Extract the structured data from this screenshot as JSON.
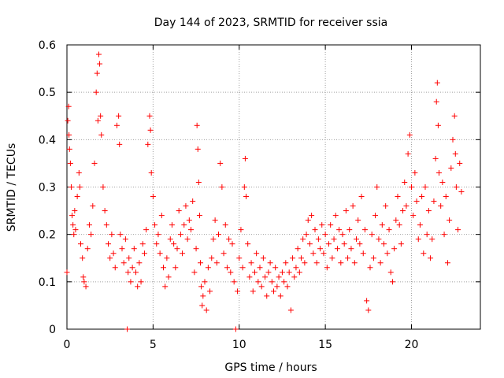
{
  "chart_data": {
    "type": "scatter",
    "title": "Day 144 of 2023, SRMTID for receiver ssia",
    "xlabel": "GPS time / hours",
    "ylabel": "SRMTID / TECUs",
    "xlim": [
      0,
      24
    ],
    "ylim": [
      0,
      0.6
    ],
    "x_ticks": [
      0,
      5,
      10,
      15,
      20
    ],
    "x_tick_labels": [
      "0",
      "5",
      "10",
      "15",
      "20"
    ],
    "y_ticks": [
      0,
      0.1,
      0.2,
      0.3,
      0.4,
      0.5,
      0.6
    ],
    "y_tick_labels": [
      "0",
      "0.1",
      "0.2",
      "0.3",
      "0.4",
      "0.5",
      "0.6"
    ],
    "grid": true,
    "marker": "+",
    "series": [
      {
        "name": "SRMTID",
        "color": "#ff0000",
        "points": [
          [
            0.0,
            0.12
          ],
          [
            0.05,
            0.44
          ],
          [
            0.1,
            0.47
          ],
          [
            0.12,
            0.41
          ],
          [
            0.15,
            0.38
          ],
          [
            0.2,
            0.35
          ],
          [
            0.25,
            0.3
          ],
          [
            0.3,
            0.24
          ],
          [
            0.35,
            0.22
          ],
          [
            0.4,
            0.2
          ],
          [
            0.45,
            0.25
          ],
          [
            0.5,
            0.21
          ],
          [
            0.6,
            0.28
          ],
          [
            0.7,
            0.33
          ],
          [
            0.75,
            0.3
          ],
          [
            0.8,
            0.18
          ],
          [
            0.9,
            0.15
          ],
          [
            0.95,
            0.11
          ],
          [
            1.0,
            0.1
          ],
          [
            1.1,
            0.09
          ],
          [
            1.2,
            0.17
          ],
          [
            1.3,
            0.22
          ],
          [
            1.4,
            0.2
          ],
          [
            1.5,
            0.26
          ],
          [
            1.6,
            0.35
          ],
          [
            1.7,
            0.5
          ],
          [
            1.75,
            0.54
          ],
          [
            1.8,
            0.44
          ],
          [
            1.85,
            0.58
          ],
          [
            1.9,
            0.56
          ],
          [
            1.95,
            0.45
          ],
          [
            2.0,
            0.41
          ],
          [
            2.1,
            0.3
          ],
          [
            2.2,
            0.25
          ],
          [
            2.3,
            0.22
          ],
          [
            2.4,
            0.18
          ],
          [
            2.5,
            0.15
          ],
          [
            2.6,
            0.2
          ],
          [
            2.7,
            0.16
          ],
          [
            2.8,
            0.13
          ],
          [
            2.9,
            0.43
          ],
          [
            3.0,
            0.45
          ],
          [
            3.05,
            0.39
          ],
          [
            3.1,
            0.2
          ],
          [
            3.2,
            0.17
          ],
          [
            3.3,
            0.14
          ],
          [
            3.4,
            0.19
          ],
          [
            3.5,
            0.0
          ],
          [
            3.55,
            0.12
          ],
          [
            3.6,
            0.15
          ],
          [
            3.7,
            0.1
          ],
          [
            3.8,
            0.13
          ],
          [
            3.9,
            0.17
          ],
          [
            4.0,
            0.12
          ],
          [
            4.1,
            0.09
          ],
          [
            4.2,
            0.14
          ],
          [
            4.3,
            0.1
          ],
          [
            4.4,
            0.18
          ],
          [
            4.5,
            0.16
          ],
          [
            4.6,
            0.21
          ],
          [
            4.7,
            0.39
          ],
          [
            4.8,
            0.45
          ],
          [
            4.85,
            0.42
          ],
          [
            4.9,
            0.33
          ],
          [
            5.0,
            0.28
          ],
          [
            5.1,
            0.22
          ],
          [
            5.2,
            0.18
          ],
          [
            5.3,
            0.2
          ],
          [
            5.4,
            0.16
          ],
          [
            5.5,
            0.24
          ],
          [
            5.6,
            0.13
          ],
          [
            5.7,
            0.09
          ],
          [
            5.8,
            0.15
          ],
          [
            5.9,
            0.11
          ],
          [
            6.0,
            0.19
          ],
          [
            6.1,
            0.22
          ],
          [
            6.2,
            0.18
          ],
          [
            6.3,
            0.13
          ],
          [
            6.4,
            0.17
          ],
          [
            6.5,
            0.25
          ],
          [
            6.6,
            0.2
          ],
          [
            6.7,
            0.16
          ],
          [
            6.8,
            0.22
          ],
          [
            6.9,
            0.26
          ],
          [
            7.0,
            0.19
          ],
          [
            7.1,
            0.23
          ],
          [
            7.2,
            0.21
          ],
          [
            7.3,
            0.27
          ],
          [
            7.4,
            0.12
          ],
          [
            7.5,
            0.17
          ],
          [
            7.55,
            0.43
          ],
          [
            7.6,
            0.38
          ],
          [
            7.65,
            0.31
          ],
          [
            7.7,
            0.24
          ],
          [
            7.75,
            0.14
          ],
          [
            7.8,
            0.09
          ],
          [
            7.85,
            0.05
          ],
          [
            7.9,
            0.07
          ],
          [
            8.0,
            0.1
          ],
          [
            8.1,
            0.04
          ],
          [
            8.2,
            0.13
          ],
          [
            8.3,
            0.08
          ],
          [
            8.4,
            0.15
          ],
          [
            8.5,
            0.19
          ],
          [
            8.6,
            0.23
          ],
          [
            8.7,
            0.14
          ],
          [
            8.8,
            0.2
          ],
          [
            8.9,
            0.35
          ],
          [
            9.0,
            0.3
          ],
          [
            9.1,
            0.16
          ],
          [
            9.2,
            0.22
          ],
          [
            9.3,
            0.13
          ],
          [
            9.4,
            0.19
          ],
          [
            9.5,
            0.12
          ],
          [
            9.6,
            0.18
          ],
          [
            9.7,
            0.1
          ],
          [
            9.8,
            0.0
          ],
          [
            9.9,
            0.08
          ],
          [
            10.0,
            0.15
          ],
          [
            10.1,
            0.21
          ],
          [
            10.2,
            0.13
          ],
          [
            10.3,
            0.3
          ],
          [
            10.35,
            0.36
          ],
          [
            10.4,
            0.28
          ],
          [
            10.5,
            0.18
          ],
          [
            10.6,
            0.11
          ],
          [
            10.7,
            0.14
          ],
          [
            10.8,
            0.08
          ],
          [
            10.9,
            0.12
          ],
          [
            11.0,
            0.16
          ],
          [
            11.1,
            0.1
          ],
          [
            11.2,
            0.13
          ],
          [
            11.3,
            0.09
          ],
          [
            11.4,
            0.15
          ],
          [
            11.5,
            0.11
          ],
          [
            11.6,
            0.07
          ],
          [
            11.7,
            0.12
          ],
          [
            11.8,
            0.14
          ],
          [
            11.9,
            0.1
          ],
          [
            12.0,
            0.08
          ],
          [
            12.1,
            0.13
          ],
          [
            12.2,
            0.09
          ],
          [
            12.3,
            0.11
          ],
          [
            12.4,
            0.07
          ],
          [
            12.5,
            0.12
          ],
          [
            12.6,
            0.1
          ],
          [
            12.7,
            0.14
          ],
          [
            12.8,
            0.09
          ],
          [
            12.9,
            0.12
          ],
          [
            13.0,
            0.04
          ],
          [
            13.1,
            0.15
          ],
          [
            13.2,
            0.11
          ],
          [
            13.3,
            0.13
          ],
          [
            13.4,
            0.17
          ],
          [
            13.5,
            0.12
          ],
          [
            13.6,
            0.15
          ],
          [
            13.7,
            0.19
          ],
          [
            13.8,
            0.14
          ],
          [
            13.9,
            0.2
          ],
          [
            14.0,
            0.23
          ],
          [
            14.1,
            0.18
          ],
          [
            14.2,
            0.24
          ],
          [
            14.3,
            0.16
          ],
          [
            14.4,
            0.21
          ],
          [
            14.5,
            0.14
          ],
          [
            14.6,
            0.19
          ],
          [
            14.7,
            0.17
          ],
          [
            14.8,
            0.22
          ],
          [
            14.9,
            0.16
          ],
          [
            15.0,
            0.2
          ],
          [
            15.1,
            0.13
          ],
          [
            15.2,
            0.18
          ],
          [
            15.3,
            0.22
          ],
          [
            15.4,
            0.15
          ],
          [
            15.5,
            0.19
          ],
          [
            15.6,
            0.24
          ],
          [
            15.7,
            0.17
          ],
          [
            15.8,
            0.21
          ],
          [
            15.9,
            0.14
          ],
          [
            16.0,
            0.2
          ],
          [
            16.1,
            0.18
          ],
          [
            16.2,
            0.25
          ],
          [
            16.3,
            0.15
          ],
          [
            16.4,
            0.21
          ],
          [
            16.5,
            0.17
          ],
          [
            16.6,
            0.26
          ],
          [
            16.7,
            0.14
          ],
          [
            16.8,
            0.19
          ],
          [
            16.9,
            0.23
          ],
          [
            17.0,
            0.18
          ],
          [
            17.1,
            0.28
          ],
          [
            17.2,
            0.16
          ],
          [
            17.3,
            0.21
          ],
          [
            17.4,
            0.06
          ],
          [
            17.5,
            0.04
          ],
          [
            17.6,
            0.13
          ],
          [
            17.7,
            0.2
          ],
          [
            17.8,
            0.15
          ],
          [
            17.9,
            0.24
          ],
          [
            18.0,
            0.3
          ],
          [
            18.1,
            0.19
          ],
          [
            18.2,
            0.14
          ],
          [
            18.3,
            0.22
          ],
          [
            18.4,
            0.18
          ],
          [
            18.5,
            0.26
          ],
          [
            18.6,
            0.16
          ],
          [
            18.7,
            0.21
          ],
          [
            18.8,
            0.12
          ],
          [
            18.9,
            0.1
          ],
          [
            19.0,
            0.17
          ],
          [
            19.1,
            0.23
          ],
          [
            19.2,
            0.28
          ],
          [
            19.3,
            0.22
          ],
          [
            19.4,
            0.18
          ],
          [
            19.5,
            0.25
          ],
          [
            19.6,
            0.31
          ],
          [
            19.7,
            0.26
          ],
          [
            19.8,
            0.37
          ],
          [
            19.9,
            0.41
          ],
          [
            20.0,
            0.3
          ],
          [
            20.1,
            0.24
          ],
          [
            20.2,
            0.33
          ],
          [
            20.3,
            0.27
          ],
          [
            20.4,
            0.19
          ],
          [
            20.5,
            0.22
          ],
          [
            20.6,
            0.28
          ],
          [
            20.7,
            0.16
          ],
          [
            20.8,
            0.3
          ],
          [
            20.9,
            0.2
          ],
          [
            21.0,
            0.25
          ],
          [
            21.1,
            0.15
          ],
          [
            21.2,
            0.19
          ],
          [
            21.3,
            0.27
          ],
          [
            21.4,
            0.36
          ],
          [
            21.45,
            0.48
          ],
          [
            21.5,
            0.52
          ],
          [
            21.55,
            0.43
          ],
          [
            21.6,
            0.33
          ],
          [
            21.7,
            0.26
          ],
          [
            21.8,
            0.31
          ],
          [
            21.9,
            0.2
          ],
          [
            22.0,
            0.28
          ],
          [
            22.1,
            0.14
          ],
          [
            22.2,
            0.23
          ],
          [
            22.3,
            0.34
          ],
          [
            22.4,
            0.4
          ],
          [
            22.5,
            0.45
          ],
          [
            22.55,
            0.37
          ],
          [
            22.6,
            0.3
          ],
          [
            22.7,
            0.21
          ],
          [
            22.8,
            0.35
          ],
          [
            22.9,
            0.29
          ]
        ]
      }
    ]
  }
}
